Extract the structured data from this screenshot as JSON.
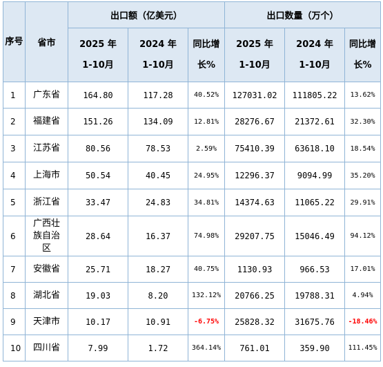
{
  "header": {
    "seq": "序号",
    "province": "省市",
    "export_amount": "出口额（亿美元）",
    "export_qty": "出口数量（万个）",
    "y2025_top": "2025 年",
    "y2025_bottom": "1-10月",
    "y2024_top": "2024 年",
    "y2024_bottom": "1-10月",
    "yoy_top": "同比增",
    "yoy_bottom": "长%"
  },
  "rows": [
    {
      "idx": "1",
      "province": "广东省",
      "amt2025": "164.80",
      "amt2024": "117.28",
      "amt_yoy": "40.52%",
      "qty2025": "127031.02",
      "qty2024": "111805.22",
      "qty_yoy": "13.62%"
    },
    {
      "idx": "2",
      "province": "福建省",
      "amt2025": "151.26",
      "amt2024": "134.09",
      "amt_yoy": "12.81%",
      "qty2025": "28276.67",
      "qty2024": "21372.61",
      "qty_yoy": "32.30%"
    },
    {
      "idx": "3",
      "province": "江苏省",
      "amt2025": "80.56",
      "amt2024": "78.53",
      "amt_yoy": "2.59%",
      "qty2025": "75410.39",
      "qty2024": "63618.10",
      "qty_yoy": "18.54%"
    },
    {
      "idx": "4",
      "province": "上海市",
      "amt2025": "50.54",
      "amt2024": "40.45",
      "amt_yoy": "24.95%",
      "qty2025": "12296.37",
      "qty2024": "9094.99",
      "qty_yoy": "35.20%"
    },
    {
      "idx": "5",
      "province": "浙江省",
      "amt2025": "33.47",
      "amt2024": "24.83",
      "amt_yoy": "34.81%",
      "qty2025": "14374.63",
      "qty2024": "11065.22",
      "qty_yoy": "29.91%"
    },
    {
      "idx": "6",
      "province": "广西壮族自治区",
      "amt2025": "28.64",
      "amt2024": "16.37",
      "amt_yoy": "74.98%",
      "qty2025": "29207.75",
      "qty2024": "15046.49",
      "qty_yoy": "94.12%"
    },
    {
      "idx": "7",
      "province": "安徽省",
      "amt2025": "25.71",
      "amt2024": "18.27",
      "amt_yoy": "40.75%",
      "qty2025": "1130.93",
      "qty2024": "966.53",
      "qty_yoy": "17.01%"
    },
    {
      "idx": "8",
      "province": "湖北省",
      "amt2025": "19.03",
      "amt2024": "8.20",
      "amt_yoy": "132.12%",
      "qty2025": "20766.25",
      "qty2024": "19788.31",
      "qty_yoy": "4.94%"
    },
    {
      "idx": "9",
      "province": "天津市",
      "amt2025": "10.17",
      "amt2024": "10.91",
      "amt_yoy": "-6.75%",
      "qty2025": "25828.32",
      "qty2024": "31675.76",
      "qty_yoy": "-18.46%"
    },
    {
      "idx": "10",
      "province": "四川省",
      "amt2025": "7.99",
      "amt2024": "1.72",
      "amt_yoy": "364.14%",
      "qty2025": "761.01",
      "qty2024": "359.90",
      "qty_yoy": "111.45%"
    }
  ],
  "colors": {
    "header_bg": "#dde8f3",
    "border": "#8fb4d6",
    "negative": "#ff0000"
  }
}
